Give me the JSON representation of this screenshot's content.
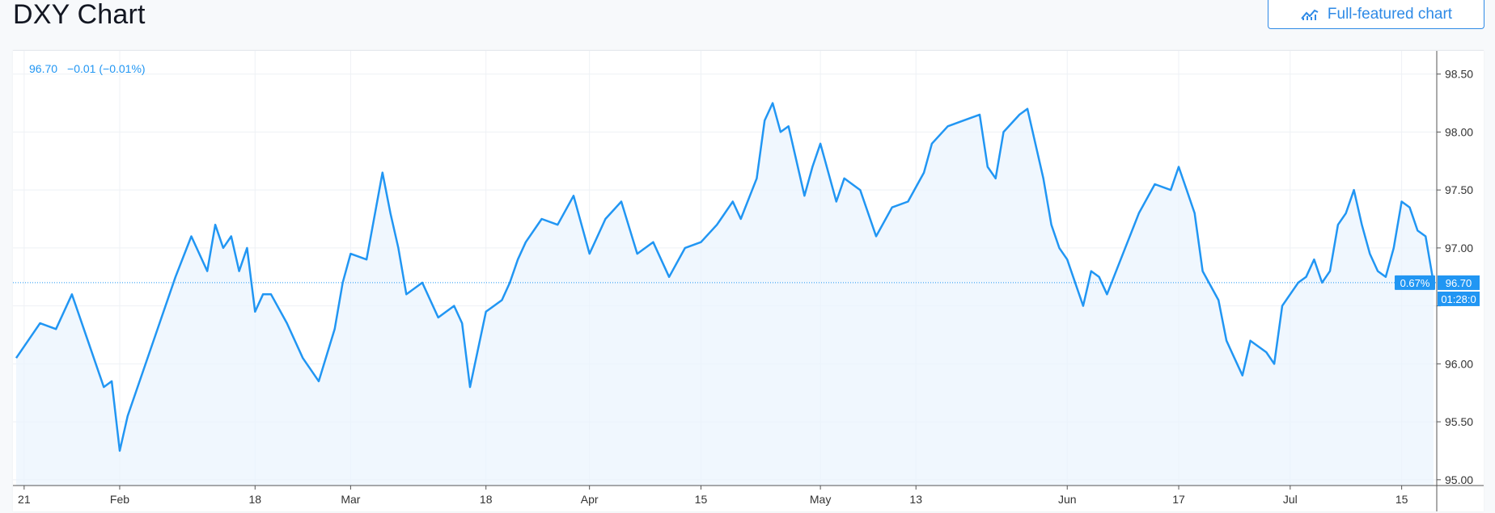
{
  "header": {
    "title": "DXY Chart",
    "full_button_label": "Full-featured chart"
  },
  "legend": {
    "last": "96.70",
    "change": "−0.01 (−0.01%)"
  },
  "badges": {
    "percent": "0.67%",
    "price": "96.70",
    "countdown": "01:28:0"
  },
  "colors": {
    "line": "#2196f3",
    "fill": "#eaf3fd",
    "grid": "#eef1f5",
    "axis_text": "#333333",
    "badge": "#2196f3"
  },
  "chart_data": {
    "type": "area",
    "symbol": "DXY",
    "ylim": [
      94.95,
      98.7
    ],
    "yticks": [
      95.0,
      95.5,
      96.0,
      96.5,
      97.0,
      97.5,
      98.0,
      98.5
    ],
    "ytick_labels": [
      "95.00",
      "95.50",
      "96.00",
      "",
      "97.00",
      "97.50",
      "98.00",
      "98.50"
    ],
    "x_range": [
      0,
      178
    ],
    "xticks": [
      {
        "label": "21",
        "x": 1
      },
      {
        "label": "Feb",
        "x": 13
      },
      {
        "label": "18",
        "x": 30
      },
      {
        "label": "Mar",
        "x": 42
      },
      {
        "label": "18",
        "x": 59
      },
      {
        "label": "Apr",
        "x": 72
      },
      {
        "label": "15",
        "x": 86
      },
      {
        "label": "May",
        "x": 101
      },
      {
        "label": "13",
        "x": 113
      },
      {
        "label": "Jun",
        "x": 132
      },
      {
        "label": "17",
        "x": 146
      },
      {
        "label": "Jul",
        "x": 160
      },
      {
        "label": "15",
        "x": 174
      }
    ],
    "x": [
      0,
      3,
      5,
      7,
      9,
      11,
      12,
      13,
      14,
      16,
      18,
      20,
      22,
      24,
      25,
      26,
      27,
      28,
      29,
      30,
      31,
      32,
      34,
      36,
      38,
      40,
      41,
      42,
      44,
      46,
      47,
      48,
      49,
      51,
      53,
      55,
      56,
      57,
      59,
      61,
      62,
      63,
      64,
      66,
      68,
      70,
      72,
      74,
      76,
      78,
      80,
      82,
      84,
      86,
      88,
      90,
      91,
      93,
      94,
      95,
      96,
      97,
      99,
      100,
      101,
      103,
      104,
      106,
      108,
      110,
      112,
      114,
      115,
      117,
      119,
      121,
      122,
      123,
      124,
      126,
      127,
      129,
      130,
      131,
      132,
      134,
      135,
      136,
      137,
      139,
      141,
      143,
      145,
      146,
      147,
      148,
      149,
      151,
      152,
      153,
      154,
      155,
      157,
      158,
      159,
      161,
      162,
      163,
      164,
      165,
      166,
      167,
      168,
      169,
      170,
      171,
      172,
      173,
      174,
      175,
      176,
      177,
      178
    ],
    "values": [
      96.05,
      96.35,
      96.3,
      96.6,
      96.2,
      95.8,
      95.85,
      95.25,
      95.55,
      95.95,
      96.35,
      96.75,
      97.1,
      96.8,
      97.2,
      97.0,
      97.1,
      96.8,
      97.0,
      96.45,
      96.6,
      96.6,
      96.35,
      96.05,
      95.85,
      96.3,
      96.7,
      96.95,
      96.9,
      97.65,
      97.3,
      97.0,
      96.6,
      96.7,
      96.4,
      96.5,
      96.35,
      95.8,
      96.45,
      96.55,
      96.7,
      96.9,
      97.05,
      97.25,
      97.2,
      97.45,
      96.95,
      97.25,
      97.4,
      96.95,
      97.05,
      96.75,
      97.0,
      97.05,
      97.2,
      97.4,
      97.25,
      97.6,
      98.1,
      98.25,
      98.0,
      98.05,
      97.45,
      97.7,
      97.9,
      97.4,
      97.6,
      97.5,
      97.1,
      97.35,
      97.4,
      97.65,
      97.9,
      98.05,
      98.1,
      98.15,
      97.7,
      97.6,
      98.0,
      98.15,
      98.2,
      97.6,
      97.2,
      97.0,
      96.9,
      96.5,
      96.8,
      96.75,
      96.6,
      96.95,
      97.3,
      97.55,
      97.5,
      97.7,
      97.5,
      97.3,
      96.8,
      96.55,
      96.2,
      96.05,
      95.9,
      96.2,
      96.1,
      96.0,
      96.5,
      96.7,
      96.75,
      96.9,
      96.7,
      96.8,
      97.2,
      97.3,
      97.5,
      97.2,
      96.95,
      96.8,
      96.75,
      97.0,
      97.4,
      97.35,
      97.15,
      97.1,
      96.7
    ]
  }
}
